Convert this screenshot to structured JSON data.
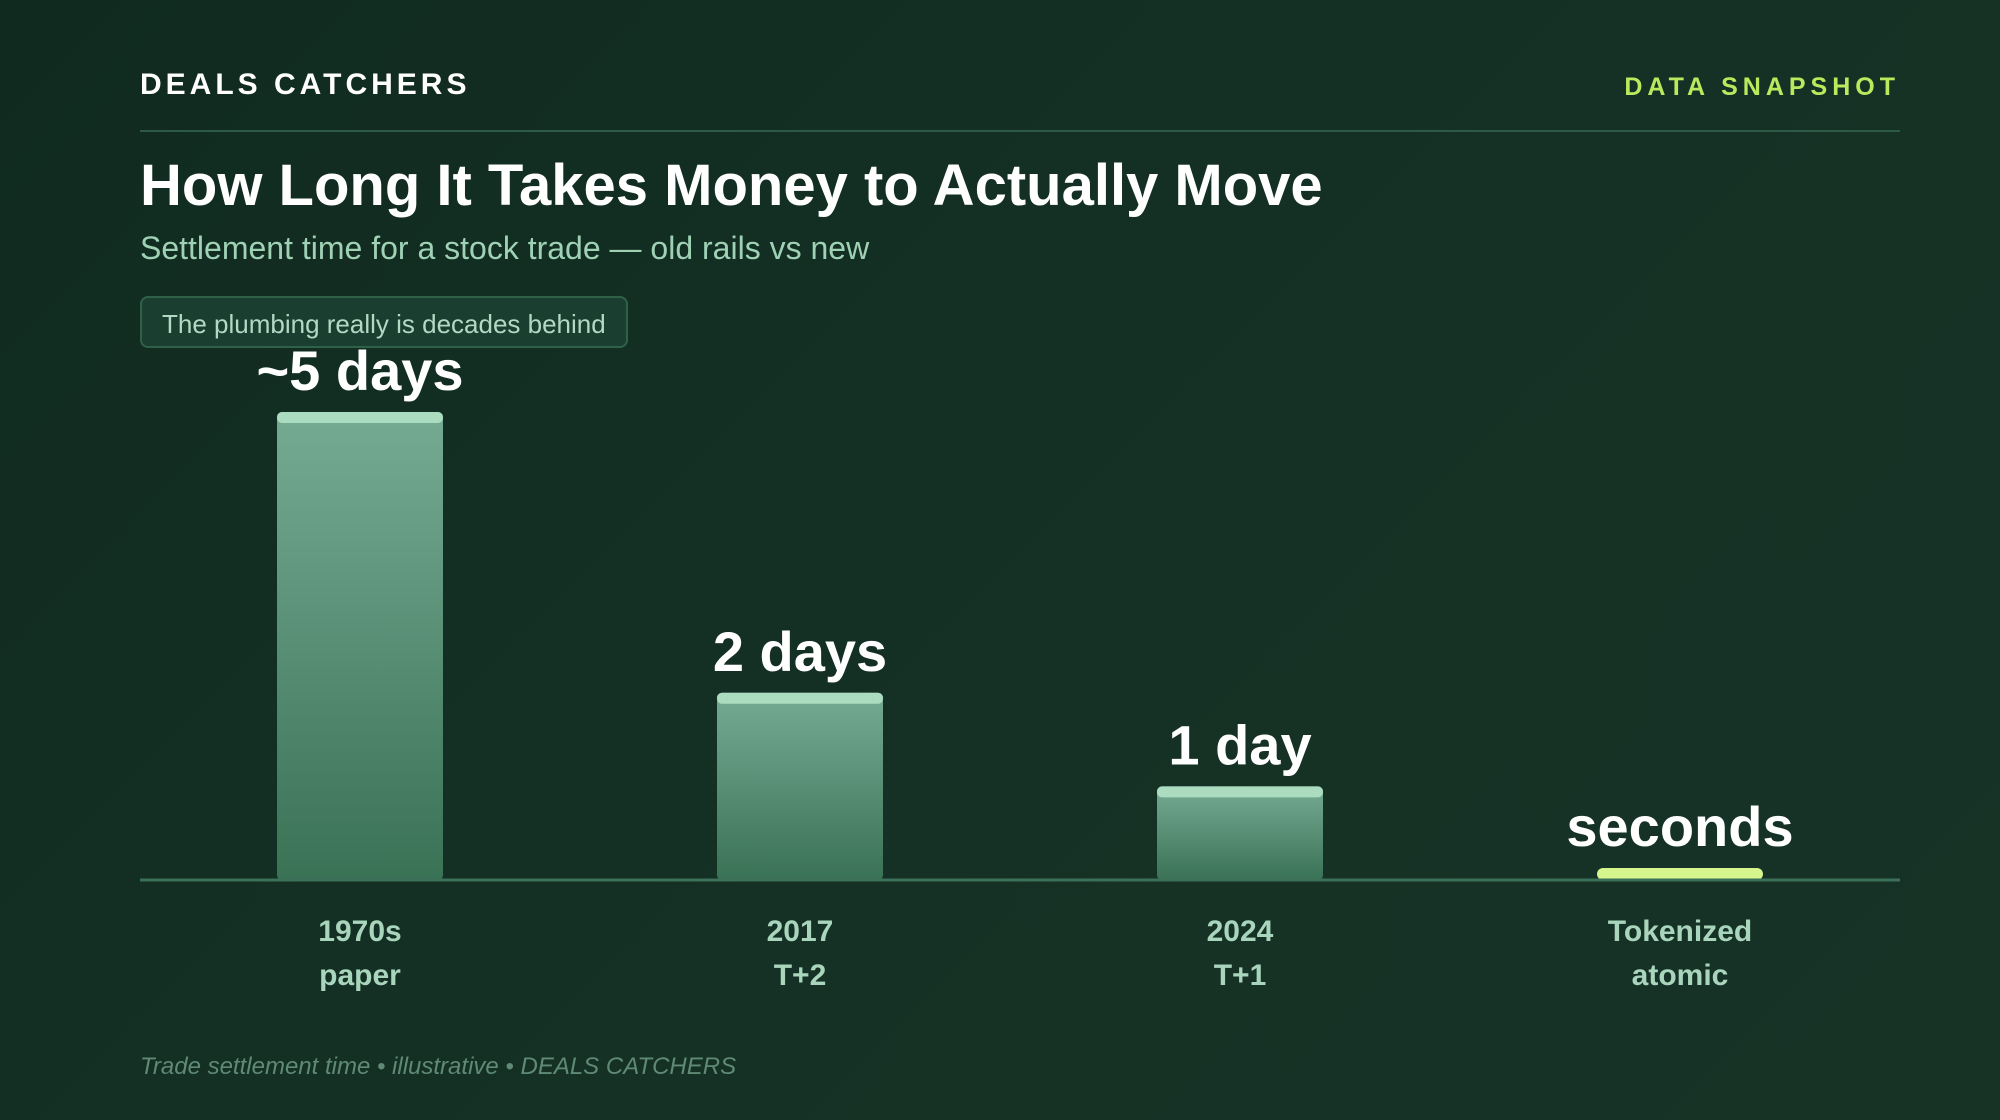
{
  "header": {
    "brand": "DEALS CATCHERS",
    "tag": "DATA SNAPSHOT"
  },
  "title": "How Long It Takes Money to Actually Move",
  "subtitle": "Settlement time for a stock trade — old rails vs new",
  "callout": "The plumbing really is decades behind",
  "footer": "Trade settlement time • illustrative • DEALS CATCHERS",
  "colors": {
    "bar_top": "#75ab93",
    "bar_bottom": "#3a7256",
    "bar_cap": "#acdcbf",
    "highlight": "#d6f58d",
    "baseline": "#3d7059"
  },
  "chart_data": {
    "type": "bar",
    "categories": [
      "1970s paper",
      "2017 T+2",
      "2024 T+1",
      "Tokenized atomic"
    ],
    "category_lines": [
      [
        "1970s",
        "paper"
      ],
      [
        "2017",
        "T+2"
      ],
      [
        "2024",
        "T+1"
      ],
      [
        "Tokenized",
        "atomic"
      ]
    ],
    "values": [
      5,
      2,
      1,
      0.0001
    ],
    "data_labels": [
      "~5 days",
      "2 days",
      "1 day",
      "seconds"
    ],
    "highlight_index": 3,
    "unit": "days",
    "title": "How Long It Takes Money to Actually Move",
    "subtitle": "Settlement time for a stock trade — old rails vs new",
    "xlabel": "",
    "ylabel": "",
    "ylim": [
      0,
      5
    ],
    "grid": false,
    "legend": "none"
  }
}
